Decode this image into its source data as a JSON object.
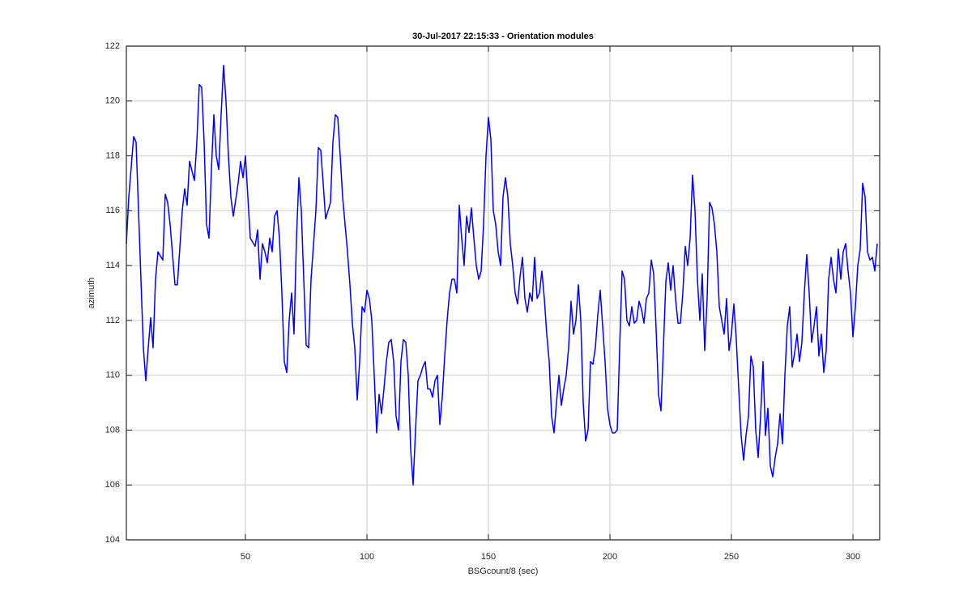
{
  "chart_data": {
    "type": "line",
    "title": "30-Jul-2017 22:15:33 - Orientation modules",
    "xlabel": "BSGcount/8 (sec)",
    "ylabel": "azimuth",
    "color": "#0000ff",
    "grid": true,
    "xlim": [
      1,
      311
    ],
    "ylim": [
      104,
      122
    ],
    "xticks": [
      50,
      100,
      150,
      200,
      250,
      300
    ],
    "yticks": [
      104,
      106,
      108,
      110,
      112,
      114,
      116,
      118,
      120,
      122
    ],
    "x": [
      1,
      2,
      4,
      5,
      6,
      8,
      9,
      10,
      11,
      12,
      13,
      14,
      16,
      17,
      18,
      19,
      21,
      22,
      24,
      25,
      26,
      27,
      29,
      30,
      31,
      32,
      33,
      34,
      35,
      36,
      37,
      38,
      39,
      40,
      41,
      42,
      43,
      44,
      45,
      47,
      48,
      49,
      50,
      51,
      52,
      54,
      55,
      56,
      57,
      58,
      59,
      60,
      61,
      62,
      63,
      64,
      65,
      66,
      67,
      68,
      69,
      70,
      71,
      72,
      73,
      74,
      75,
      76,
      77,
      79,
      80,
      81,
      82,
      83,
      84,
      85,
      86,
      87,
      88,
      89,
      90,
      91,
      92,
      93,
      94,
      95,
      96,
      97,
      98,
      99,
      100,
      101,
      102,
      103,
      104,
      105,
      106,
      107,
      108,
      109,
      110,
      111,
      112,
      113,
      114,
      115,
      116,
      117,
      118,
      119,
      120,
      121,
      122,
      123,
      124,
      125,
      126,
      127,
      128,
      129,
      130,
      131,
      132,
      133,
      134,
      135,
      136,
      137,
      138,
      139,
      140,
      141,
      142,
      143,
      144,
      145,
      146,
      147,
      148,
      149,
      150,
      151,
      152,
      153,
      154,
      155,
      156,
      157,
      158,
      159,
      160,
      161,
      162,
      163,
      164,
      165,
      166,
      167,
      168,
      169,
      170,
      171,
      172,
      173,
      174,
      175,
      176,
      177,
      178,
      179,
      180,
      181,
      182,
      183,
      184,
      185,
      186,
      187,
      188,
      189,
      190,
      191,
      192,
      193,
      194,
      195,
      196,
      197,
      198,
      199,
      200,
      201,
      202,
      203,
      204,
      205,
      206,
      207,
      208,
      209,
      210,
      211,
      212,
      213,
      214,
      215,
      216,
      217,
      218,
      219,
      220,
      221,
      222,
      223,
      224,
      225,
      226,
      227,
      228,
      229,
      230,
      231,
      232,
      233,
      234,
      235,
      236,
      237,
      238,
      239,
      240,
      241,
      242,
      243,
      244,
      245,
      246,
      247,
      248,
      249,
      250,
      251,
      252,
      253,
      254,
      255,
      256,
      257,
      258,
      259,
      260,
      261,
      262,
      263,
      264,
      265,
      266,
      267,
      268,
      269,
      270,
      271,
      272,
      273,
      274,
      275,
      276,
      277,
      278,
      279,
      280,
      281,
      282,
      283,
      284,
      285,
      286,
      287,
      288,
      289,
      290,
      291,
      292,
      293,
      294,
      295,
      296,
      297,
      298,
      299,
      300,
      301,
      302,
      303,
      304,
      305,
      306,
      307,
      308,
      309,
      310
    ],
    "values": [
      114.8,
      116.5,
      118.7,
      118.5,
      116,
      111,
      109.8,
      111,
      112.1,
      111,
      113.5,
      114.5,
      114.2,
      116.6,
      116.3,
      115.5,
      113.3,
      113.3,
      116,
      116.8,
      116.2,
      117.8,
      117.1,
      118.5,
      120.6,
      120.5,
      118.5,
      115.5,
      115,
      117.5,
      119.5,
      118,
      117.5,
      119.5,
      121.3,
      120,
      118,
      116.5,
      115.8,
      117,
      117.8,
      117.2,
      118,
      116.5,
      115,
      114.7,
      115.3,
      113.5,
      114.8,
      114.5,
      114.1,
      115,
      114.5,
      115.8,
      116,
      115,
      113,
      110.5,
      110.1,
      112,
      113,
      111.5,
      115,
      117.2,
      116,
      113.5,
      111.1,
      111,
      113.5,
      116,
      118.3,
      118.2,
      117,
      115.7,
      116,
      116.3,
      118.5,
      119.5,
      119.4,
      118,
      116.5,
      115.5,
      114.5,
      113.3,
      111.9,
      111,
      109.1,
      110.5,
      112.5,
      112.3,
      113.1,
      112.8,
      112,
      110,
      107.9,
      109.3,
      108.6,
      109.5,
      110.5,
      111.2,
      111.3,
      110.5,
      108.5,
      108,
      110.5,
      111.3,
      111.2,
      110,
      107.3,
      106,
      108,
      109.8,
      110,
      110.3,
      110.5,
      109.5,
      109.5,
      109.2,
      109.8,
      110,
      108.2,
      109.2,
      110.7,
      112,
      113,
      113.5,
      113.5,
      113,
      116.2,
      115,
      114,
      115.8,
      115.2,
      116.1,
      115,
      114,
      113.5,
      113.8,
      115.5,
      118,
      119.4,
      118.6,
      116,
      115.5,
      114.5,
      114,
      116.5,
      117.2,
      116.5,
      114.8,
      114,
      113,
      112.6,
      113.6,
      114.3,
      112.8,
      112.3,
      113,
      112.7,
      114.3,
      112.8,
      113,
      113.8,
      112.8,
      111.5,
      110.5,
      108.5,
      107.9,
      109,
      110,
      108.9,
      109.5,
      110,
      111,
      112.7,
      111.5,
      112,
      113.3,
      112,
      109,
      107.6,
      108,
      110.5,
      110.4,
      111,
      112.2,
      113.1,
      111.8,
      110.5,
      108.8,
      108.2,
      107.9,
      107.9,
      108,
      111,
      113.8,
      113.5,
      112,
      111.8,
      112.5,
      111.9,
      112,
      112.7,
      112.4,
      111.9,
      112.8,
      113,
      114.2,
      113.7,
      111.7,
      109.3,
      108.7,
      111,
      113.4,
      114.1,
      113.1,
      114,
      112.8,
      111.9,
      111.9,
      113,
      114.7,
      114,
      115,
      117.3,
      116,
      113.5,
      112,
      113.7,
      110.9,
      112.8,
      116.3,
      116.1,
      115.5,
      114.5,
      112.5,
      112,
      111.5,
      112.8,
      110.9,
      111.5,
      112.6,
      111.3,
      109.5,
      107.8,
      106.9,
      107.8,
      108.5,
      110.7,
      110.3,
      108,
      107,
      108.5,
      110.5,
      107.8,
      108.8,
      106.7,
      106.3,
      107,
      107.5,
      108.6,
      107.5,
      110,
      111.8,
      112.5,
      110.3,
      110.8,
      111.5,
      110.5,
      111.2,
      113,
      114.4,
      113,
      111.2,
      111.8,
      112.5,
      110.7,
      111.5,
      110.1,
      110.9,
      113.5,
      114.3,
      113.5,
      113,
      114.6,
      113.5,
      114.5,
      114.8,
      113.8,
      113,
      111.4,
      112.5,
      114,
      114.6,
      117,
      116.5,
      114.5,
      114.2,
      114.3,
      113.8,
      114.8
    ]
  }
}
